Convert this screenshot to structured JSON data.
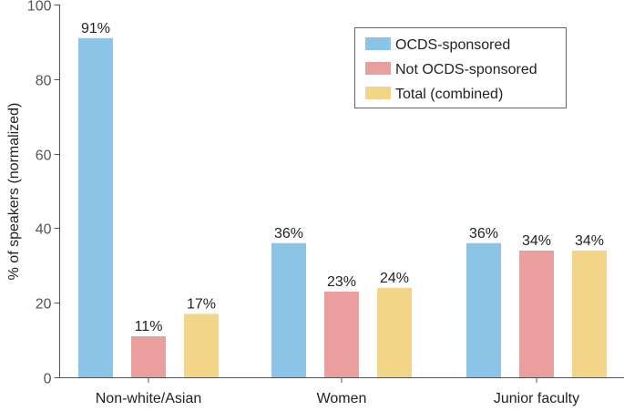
{
  "chart_data": {
    "type": "bar",
    "title": "",
    "xlabel": "",
    "ylabel": "% of speakers (normalized)",
    "ylim": [
      0,
      100
    ],
    "yticks": [
      0,
      20,
      40,
      60,
      80,
      100
    ],
    "grid": false,
    "legend_position": "top-right",
    "categories": [
      "Non-white/Asian",
      "Women",
      "Junior faculty"
    ],
    "series": [
      {
        "name": "OCDS-sponsored",
        "color": "#8cc4e8",
        "values": [
          91,
          36,
          36
        ],
        "labels": [
          "91%",
          "36%",
          "36%"
        ]
      },
      {
        "name": "Not OCDS-sponsored",
        "color": "#eb9e9e",
        "values": [
          11,
          23,
          34
        ],
        "labels": [
          "11%",
          "23%",
          "34%"
        ]
      },
      {
        "name": "Total (combined)",
        "color": "#f3d58a",
        "values": [
          17,
          24,
          34
        ],
        "labels": [
          "17%",
          "24%",
          "34%"
        ]
      }
    ]
  }
}
